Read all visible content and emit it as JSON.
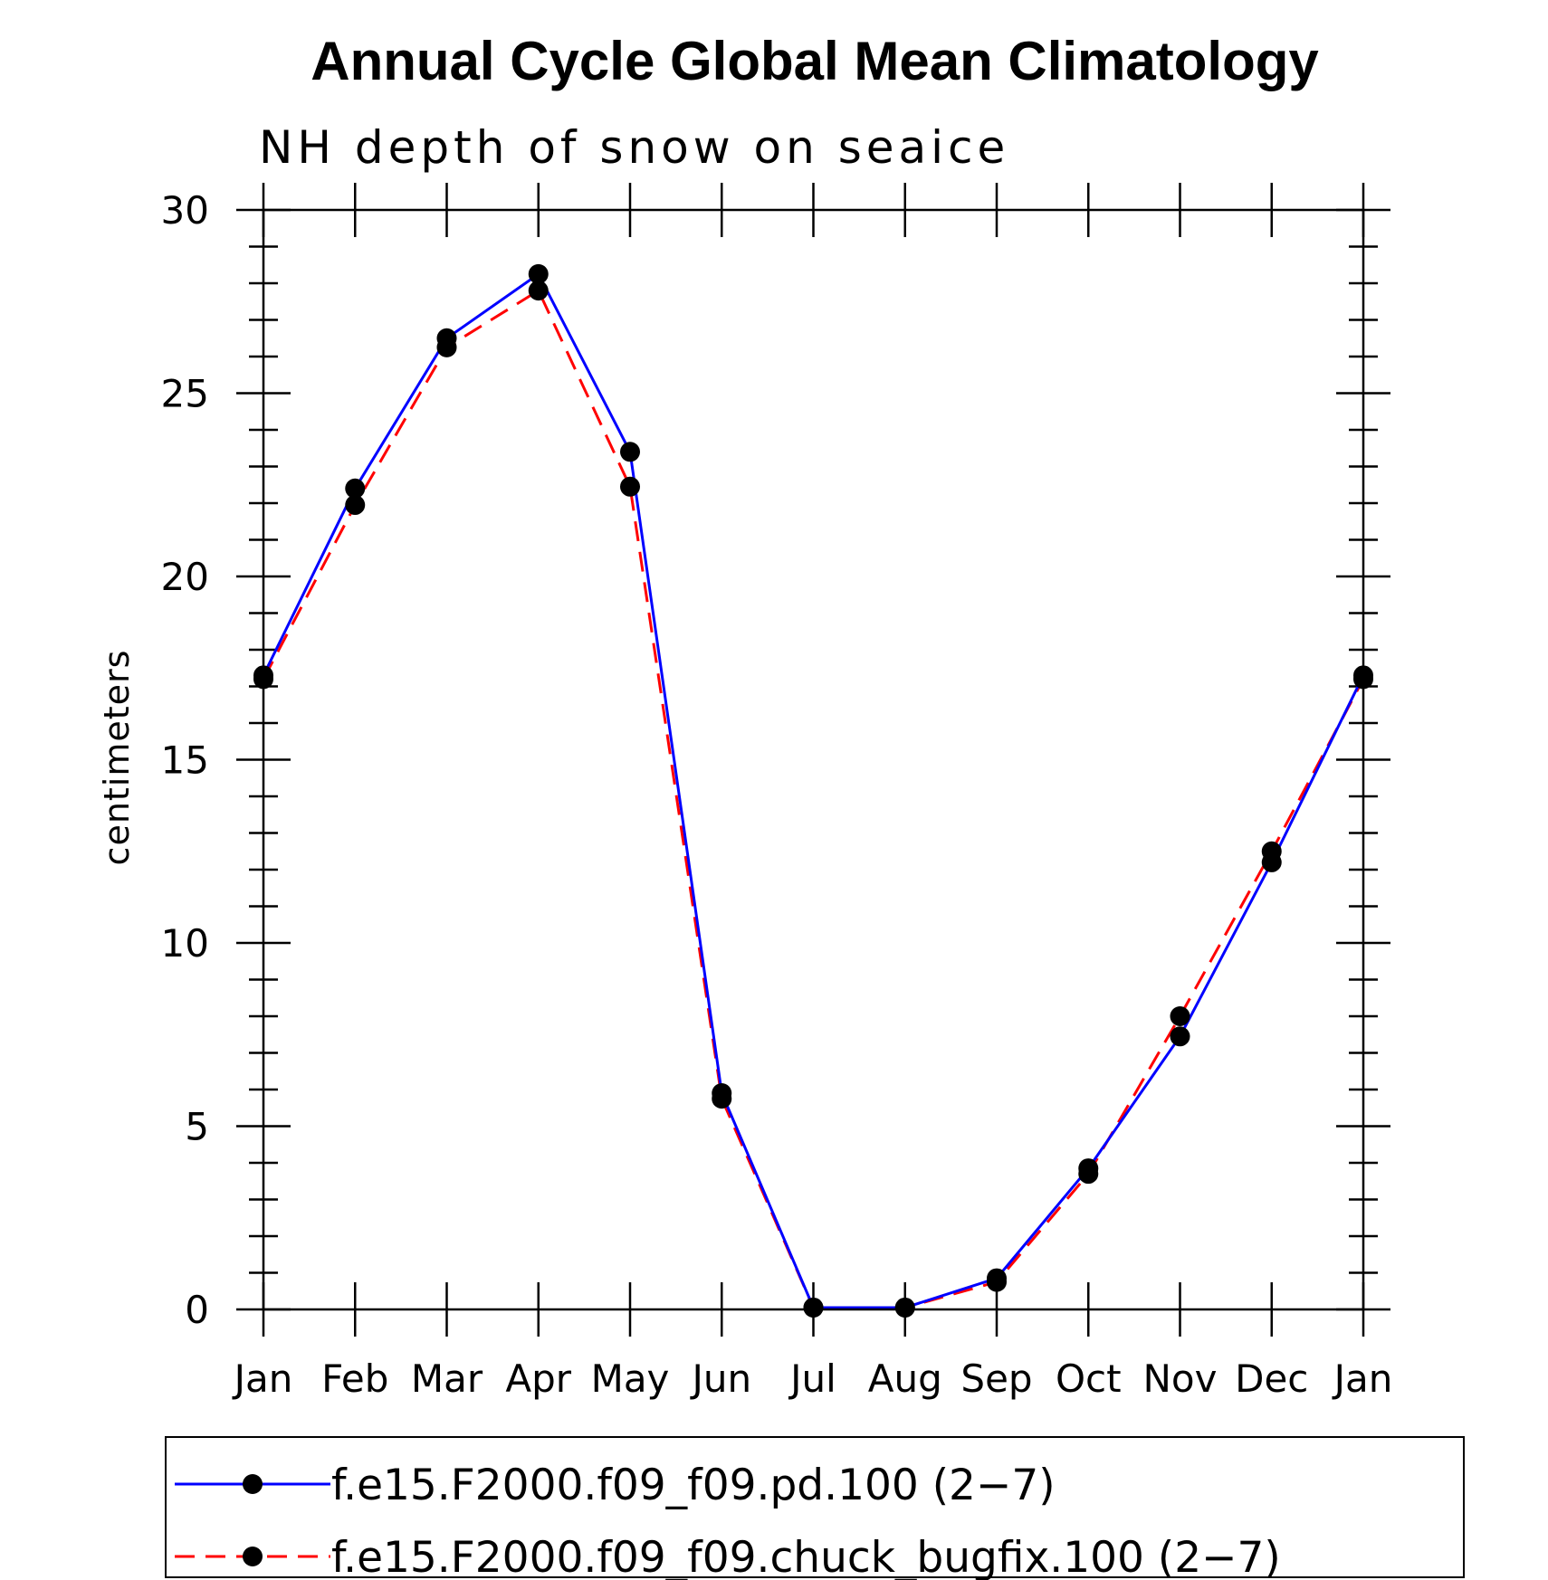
{
  "chart_data": {
    "type": "line",
    "title": "Annual Cycle Global Mean Climatology",
    "subtitle": "NH depth of snow on seaice",
    "ylabel": "centimeters",
    "xlabel": "",
    "ylim": [
      0,
      30
    ],
    "yticks": [
      0,
      5,
      10,
      15,
      20,
      25,
      30
    ],
    "yticklabels": [
      "0",
      "5",
      "10",
      "15",
      "20",
      "25",
      "30"
    ],
    "categories": [
      "Jan",
      "Feb",
      "Mar",
      "Apr",
      "May",
      "Jun",
      "Jul",
      "Aug",
      "Sep",
      "Oct",
      "Nov",
      "Dec",
      "Jan"
    ],
    "series": [
      {
        "name": "f.e15.F2000.f09_f09.pd.100 (2−7)",
        "color": "#0000ff",
        "dash": "solid",
        "values": [
          17.3,
          22.4,
          26.5,
          28.25,
          23.4,
          5.9,
          0.05,
          0.05,
          0.85,
          3.85,
          7.45,
          12.2,
          17.3
        ]
      },
      {
        "name": "f.e15.F2000.f09_f09.chuck_bugfix.100 (2−7)",
        "color": "#ff0000",
        "dash": "dashed",
        "values": [
          17.2,
          21.95,
          26.25,
          27.8,
          22.45,
          5.75,
          0.05,
          0.05,
          0.75,
          3.7,
          8.0,
          12.5,
          17.2
        ]
      }
    ],
    "grid": false,
    "legend_position": "bottom"
  }
}
